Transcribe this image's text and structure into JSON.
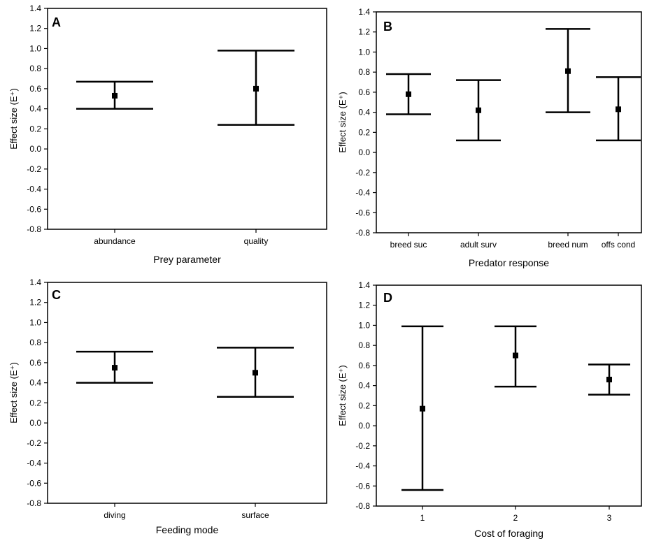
{
  "chart_data": [
    {
      "type": "errorbar",
      "panel_label": "A",
      "xlabel": "Prey parameter",
      "ylabel": "Effect size (E⁺)",
      "ylim": [
        -0.8,
        1.4
      ],
      "yticks": [
        "-0.8",
        "-0.6",
        "-0.4",
        "-0.2",
        "0.0",
        "0.2",
        "0.4",
        "0.6",
        "0.8",
        "1.0",
        "1.2",
        "1.4"
      ],
      "categories": [
        "abundance",
        "quality"
      ],
      "mean": [
        0.53,
        0.6
      ],
      "lower": [
        0.4,
        0.24
      ],
      "upper": [
        0.67,
        0.98
      ],
      "grid": false
    },
    {
      "type": "errorbar",
      "panel_label": "B",
      "xlabel": "Predator response",
      "ylabel": "Effect size (E⁺)",
      "ylim": [
        -0.8,
        1.4
      ],
      "yticks": [
        "-0.8",
        "-0.6",
        "-0.4",
        "-0.2",
        "0.0",
        "0.2",
        "0.4",
        "0.6",
        "0.8",
        "1.0",
        "1.2",
        "1.4"
      ],
      "categories": [
        "breed suc",
        "adult surv",
        "breed num",
        "offs cond"
      ],
      "mean": [
        0.58,
        0.42,
        0.81,
        0.43
      ],
      "lower": [
        0.38,
        0.12,
        0.4,
        0.12
      ],
      "upper": [
        0.78,
        0.72,
        1.23,
        0.75
      ],
      "grid": false
    },
    {
      "type": "errorbar",
      "panel_label": "C",
      "xlabel": "Feeding mode",
      "ylabel": "Effect size (E⁺)",
      "ylim": [
        -0.8,
        1.4
      ],
      "yticks": [
        "-0.8",
        "-0.6",
        "-0.4",
        "-0.2",
        "0.0",
        "0.2",
        "0.4",
        "0.6",
        "0.8",
        "1.0",
        "1.2",
        "1.4"
      ],
      "categories": [
        "diving",
        "surface"
      ],
      "mean": [
        0.55,
        0.5
      ],
      "lower": [
        0.4,
        0.26
      ],
      "upper": [
        0.71,
        0.75
      ],
      "grid": false
    },
    {
      "type": "errorbar",
      "panel_label": "D",
      "xlabel": "Cost of foraging",
      "ylabel": "Effect size (E⁺)",
      "ylim": [
        -0.8,
        1.4
      ],
      "yticks": [
        "-0.8",
        "-0.6",
        "-0.4",
        "-0.2",
        "0.0",
        "0.2",
        "0.4",
        "0.6",
        "0.8",
        "1.0",
        "1.2",
        "1.4"
      ],
      "categories": [
        "1",
        "2",
        "3"
      ],
      "mean": [
        0.17,
        0.7,
        0.46
      ],
      "lower": [
        -0.64,
        0.39,
        0.31
      ],
      "upper": [
        0.99,
        0.99,
        0.61
      ],
      "grid": false
    }
  ],
  "colors": {
    "ink": "#000000",
    "background": "#ffffff"
  }
}
